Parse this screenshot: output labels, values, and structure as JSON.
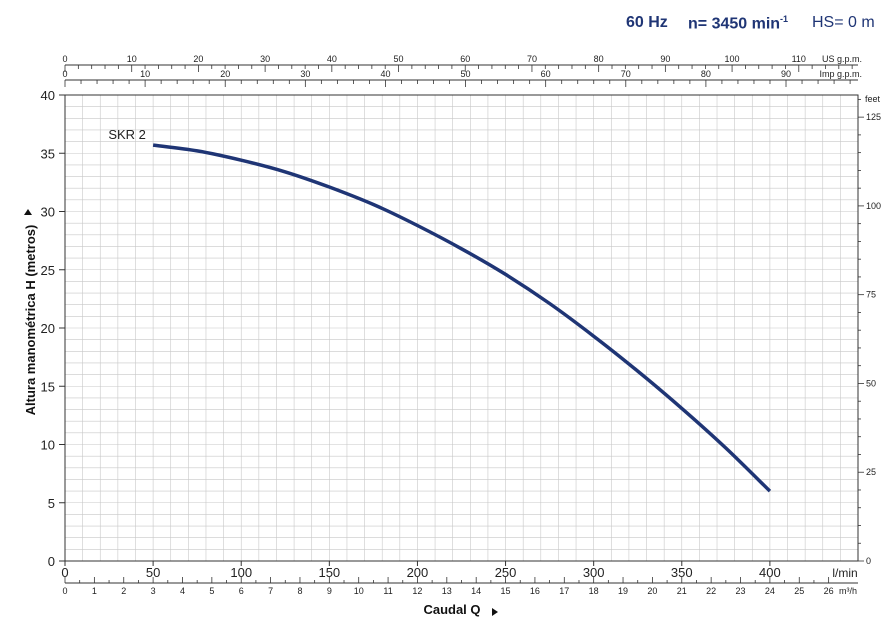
{
  "header": {
    "freq": "60 Hz",
    "speed_prefix": "n= 3450 min",
    "speed_exp": "-1",
    "suction": "HS= 0 m"
  },
  "chart_data": {
    "type": "line",
    "title": "",
    "xlabel": "Caudal Q",
    "ylabel": "Altura manométrica H (metros)",
    "xlim": [
      0,
      450
    ],
    "ylim": [
      0,
      40
    ],
    "x_unit": "l/min",
    "grid": true,
    "x_ticks": [
      0,
      50,
      100,
      150,
      200,
      250,
      300,
      350,
      400
    ],
    "y_ticks": [
      0,
      5,
      10,
      15,
      20,
      25,
      30,
      35,
      40
    ],
    "secondary_axes": {
      "us_gpm": {
        "label": "US g.p.m.",
        "ticks": [
          0,
          10,
          20,
          30,
          40,
          50,
          60,
          70,
          80,
          90,
          100,
          110
        ]
      },
      "imp_gpm": {
        "label": "Imp g.p.m.",
        "ticks": [
          0,
          10,
          20,
          30,
          40,
          50,
          60,
          70,
          80,
          90
        ]
      },
      "m3h": {
        "label": "m³/h",
        "ticks": [
          0,
          1,
          2,
          3,
          4,
          5,
          6,
          7,
          8,
          9,
          10,
          11,
          12,
          13,
          14,
          15,
          16,
          17,
          18,
          19,
          20,
          21,
          22,
          23,
          24,
          25,
          26
        ]
      },
      "feet": {
        "label": "feet",
        "ticks": [
          0,
          25,
          50,
          75,
          100,
          125
        ]
      }
    },
    "series": [
      {
        "name": "SKR 2",
        "color": "#1f3575",
        "x": [
          50,
          75,
          100,
          125,
          150,
          175,
          200,
          225,
          250,
          275,
          300,
          325,
          350,
          375,
          400
        ],
        "y": [
          35.7,
          35.2,
          34.4,
          33.4,
          32.1,
          30.6,
          28.8,
          26.8,
          24.6,
          22.1,
          19.3,
          16.3,
          13.1,
          9.7,
          6.0
        ]
      }
    ]
  }
}
